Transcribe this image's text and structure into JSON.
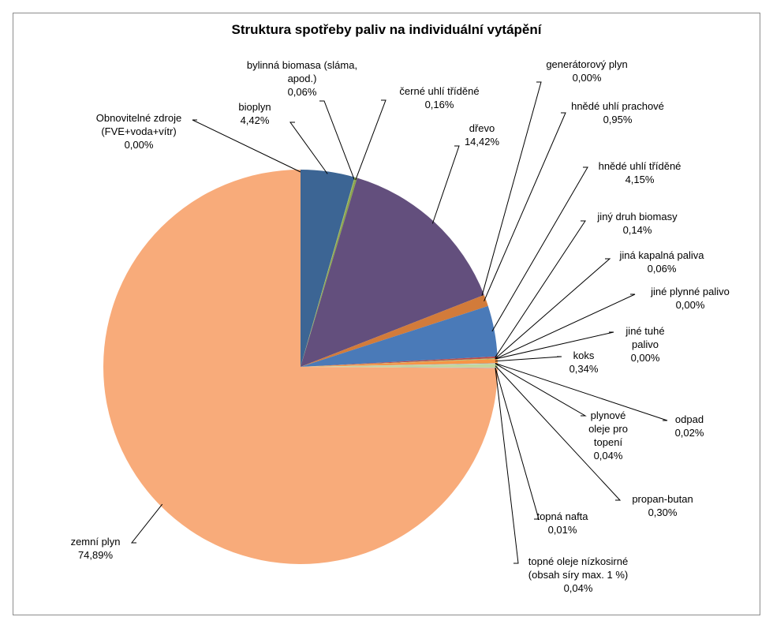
{
  "chart_data": {
    "type": "pie",
    "title": "Struktura spotřeby paliv na individuální vytápění",
    "slices": [
      {
        "label": "Obnovitelné zdroje (FVE+voda+vítr)",
        "value": 0.0,
        "value_label": "0,00%",
        "color": "#4f81bd"
      },
      {
        "label": "bioplyn",
        "value": 4.42,
        "value_label": "4,42%",
        "color": "#3c6594"
      },
      {
        "label": "bylinná biomasa (sláma, apod.)",
        "value": 0.06,
        "value_label": "0,06%",
        "color": "#9bbb59"
      },
      {
        "label": "černé uhlí tříděné",
        "value": 0.16,
        "value_label": "0,16%",
        "color": "#8aa14d"
      },
      {
        "label": "dřevo",
        "value": 14.42,
        "value_label": "14,42%",
        "color": "#634f7d"
      },
      {
        "label": "generátorový plyn",
        "value": 0.0,
        "value_label": "0,00%",
        "color": "#4bacc6"
      },
      {
        "label": "hnědé uhlí prachové",
        "value": 0.95,
        "value_label": "0,95%",
        "color": "#d27b3a"
      },
      {
        "label": "hnědé uhlí tříděné",
        "value": 4.15,
        "value_label": "4,15%",
        "color": "#4a7ab8"
      },
      {
        "label": "jiný druh biomasy",
        "value": 0.14,
        "value_label": "0,14%",
        "color": "#be4b48"
      },
      {
        "label": "jiná kapalná paliva",
        "value": 0.06,
        "value_label": "0,06%",
        "color": "#a5c26b"
      },
      {
        "label": "jiné plynné palivo",
        "value": 0.0,
        "value_label": "0,00%",
        "color": "#8064a2"
      },
      {
        "label": "jiné tuhé palivo",
        "value": 0.0,
        "value_label": "0,00%",
        "color": "#4bacc6"
      },
      {
        "label": "koks",
        "value": 0.34,
        "value_label": "0,34%",
        "color": "#f79646"
      },
      {
        "label": "odpad",
        "value": 0.02,
        "value_label": "0,02%",
        "color": "#7f7f7f"
      },
      {
        "label": "plynové oleje pro topení",
        "value": 0.04,
        "value_label": "0,04%",
        "color": "#b9cde5"
      },
      {
        "label": "propan-butan",
        "value": 0.3,
        "value_label": "0,30%",
        "color": "#c3d69b"
      },
      {
        "label": "topná nafta",
        "value": 0.01,
        "value_label": "0,01%",
        "color": "#fac090"
      },
      {
        "label": "topné oleje nízkosirné (obsah síry max. 1 %)",
        "value": 0.04,
        "value_label": "0,04%",
        "color": "#b3a2c7"
      },
      {
        "label": "zemní plyn",
        "value": 74.89,
        "value_label": "74,89%",
        "color": "#f8ab7a"
      }
    ]
  }
}
